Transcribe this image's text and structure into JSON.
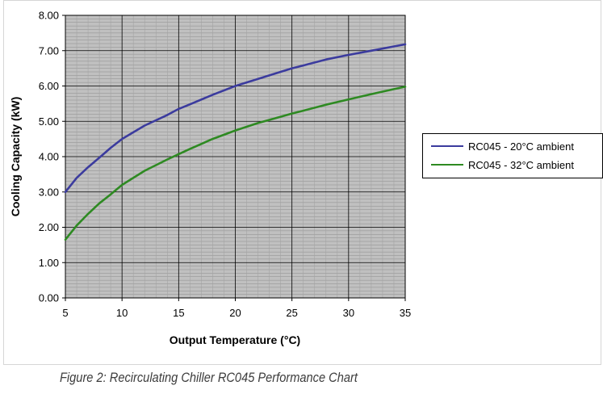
{
  "chart_data": {
    "type": "line",
    "title": "",
    "xlabel": "Output Temperature (°C)",
    "ylabel": "Cooling Capacity (kW)",
    "xlim": [
      5,
      35
    ],
    "ylim": [
      0,
      8
    ],
    "x_ticks": [
      "5",
      "10",
      "15",
      "20",
      "25",
      "30",
      "35"
    ],
    "y_ticks": [
      "0.00",
      "1.00",
      "2.00",
      "3.00",
      "4.00",
      "5.00",
      "6.00",
      "7.00",
      "8.00"
    ],
    "x": [
      5,
      6,
      7,
      8,
      9,
      10,
      12,
      14,
      15,
      16,
      18,
      20,
      22,
      24,
      25,
      26,
      28,
      30,
      32,
      34,
      35
    ],
    "series": [
      {
        "name": "RC045 - 20°C ambient",
        "color": "#3b3b9e",
        "values": [
          3.0,
          3.4,
          3.7,
          3.97,
          4.25,
          4.5,
          4.88,
          5.18,
          5.35,
          5.48,
          5.75,
          6.0,
          6.2,
          6.4,
          6.5,
          6.58,
          6.75,
          6.88,
          7.0,
          7.12,
          7.18
        ]
      },
      {
        "name": "RC045 - 32°C ambient",
        "color": "#2e8a22",
        "values": [
          1.65,
          2.05,
          2.38,
          2.68,
          2.93,
          3.2,
          3.6,
          3.92,
          4.07,
          4.22,
          4.5,
          4.74,
          4.95,
          5.13,
          5.22,
          5.3,
          5.47,
          5.62,
          5.77,
          5.91,
          5.98
        ]
      }
    ],
    "grid": true,
    "minor_grid": true,
    "legend_position": "right",
    "plot_background": "#c0c0c0"
  },
  "caption": "Figure 2: Recirculating Chiller RC045 Performance Chart"
}
